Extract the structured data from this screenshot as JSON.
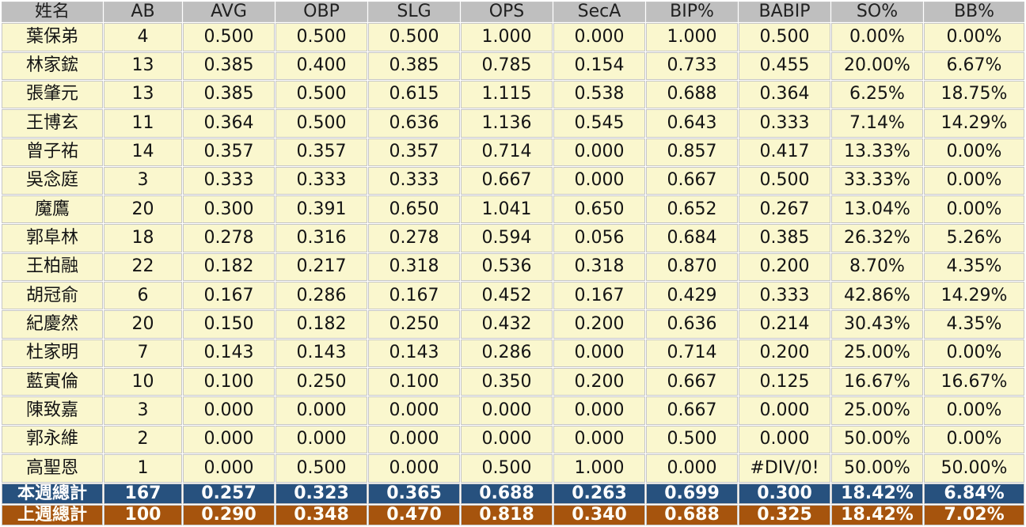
{
  "colors": {
    "header_bg": "#BFBFBF",
    "row_bg": "#FAF7CE",
    "this_week_bg": "#27517E",
    "last_week_bg": "#A6540D",
    "grid_line": "#C6C6C6",
    "header_text": "#212121",
    "row_text": "#141414",
    "total_text": "#FFFFFF"
  },
  "table": {
    "columns": [
      "姓名",
      "AB",
      "AVG",
      "OBP",
      "SLG",
      "OPS",
      "SecA",
      "BIP%",
      "BABIP",
      "SO%",
      "BB%"
    ],
    "rows": [
      {
        "name": "葉保弟",
        "stats": [
          "4",
          "0.500",
          "0.500",
          "0.500",
          "1.000",
          "0.000",
          "1.000",
          "0.500",
          "0.00%",
          "0.00%"
        ]
      },
      {
        "name": "林家鋐",
        "stats": [
          "13",
          "0.385",
          "0.400",
          "0.385",
          "0.785",
          "0.154",
          "0.733",
          "0.455",
          "20.00%",
          "6.67%"
        ]
      },
      {
        "name": "張肇元",
        "stats": [
          "13",
          "0.385",
          "0.500",
          "0.615",
          "1.115",
          "0.538",
          "0.688",
          "0.364",
          "6.25%",
          "18.75%"
        ]
      },
      {
        "name": "王博玄",
        "stats": [
          "11",
          "0.364",
          "0.500",
          "0.636",
          "1.136",
          "0.545",
          "0.643",
          "0.333",
          "7.14%",
          "14.29%"
        ]
      },
      {
        "name": "曾子祐",
        "stats": [
          "14",
          "0.357",
          "0.357",
          "0.357",
          "0.714",
          "0.000",
          "0.857",
          "0.417",
          "13.33%",
          "0.00%"
        ]
      },
      {
        "name": "吳念庭",
        "stats": [
          "3",
          "0.333",
          "0.333",
          "0.333",
          "0.667",
          "0.000",
          "0.667",
          "0.500",
          "33.33%",
          "0.00%"
        ]
      },
      {
        "name": "魔鷹",
        "stats": [
          "20",
          "0.300",
          "0.391",
          "0.650",
          "1.041",
          "0.650",
          "0.652",
          "0.267",
          "13.04%",
          "0.00%"
        ]
      },
      {
        "name": "郭阜林",
        "stats": [
          "18",
          "0.278",
          "0.316",
          "0.278",
          "0.594",
          "0.056",
          "0.684",
          "0.385",
          "26.32%",
          "5.26%"
        ]
      },
      {
        "name": "王柏融",
        "stats": [
          "22",
          "0.182",
          "0.217",
          "0.318",
          "0.536",
          "0.318",
          "0.870",
          "0.200",
          "8.70%",
          "4.35%"
        ]
      },
      {
        "name": "胡冠俞",
        "stats": [
          "6",
          "0.167",
          "0.286",
          "0.167",
          "0.452",
          "0.167",
          "0.429",
          "0.333",
          "42.86%",
          "14.29%"
        ]
      },
      {
        "name": "紀慶然",
        "stats": [
          "20",
          "0.150",
          "0.182",
          "0.250",
          "0.432",
          "0.200",
          "0.636",
          "0.214",
          "30.43%",
          "4.35%"
        ]
      },
      {
        "name": "杜家明",
        "stats": [
          "7",
          "0.143",
          "0.143",
          "0.143",
          "0.286",
          "0.000",
          "0.714",
          "0.200",
          "25.00%",
          "0.00%"
        ]
      },
      {
        "name": "藍寅倫",
        "stats": [
          "10",
          "0.100",
          "0.250",
          "0.100",
          "0.350",
          "0.200",
          "0.667",
          "0.125",
          "16.67%",
          "16.67%"
        ]
      },
      {
        "name": "陳致嘉",
        "stats": [
          "3",
          "0.000",
          "0.000",
          "0.000",
          "0.000",
          "0.000",
          "0.667",
          "0.000",
          "25.00%",
          "0.00%"
        ]
      },
      {
        "name": "郭永維",
        "stats": [
          "2",
          "0.000",
          "0.000",
          "0.000",
          "0.000",
          "0.000",
          "0.500",
          "0.000",
          "50.00%",
          "0.00%"
        ]
      },
      {
        "name": "高聖恩",
        "stats": [
          "1",
          "0.000",
          "0.500",
          "0.000",
          "0.500",
          "1.000",
          "0.000",
          "#DIV/0!",
          "50.00%",
          "50.00%"
        ]
      }
    ],
    "totals": [
      {
        "label": "本週總計",
        "stats": [
          "167",
          "0.257",
          "0.323",
          "0.365",
          "0.688",
          "0.263",
          "0.699",
          "0.300",
          "18.42%",
          "6.84%"
        ]
      },
      {
        "label": "上週總計",
        "stats": [
          "100",
          "0.290",
          "0.348",
          "0.470",
          "0.818",
          "0.340",
          "0.688",
          "0.325",
          "18.42%",
          "7.02%"
        ]
      }
    ]
  }
}
